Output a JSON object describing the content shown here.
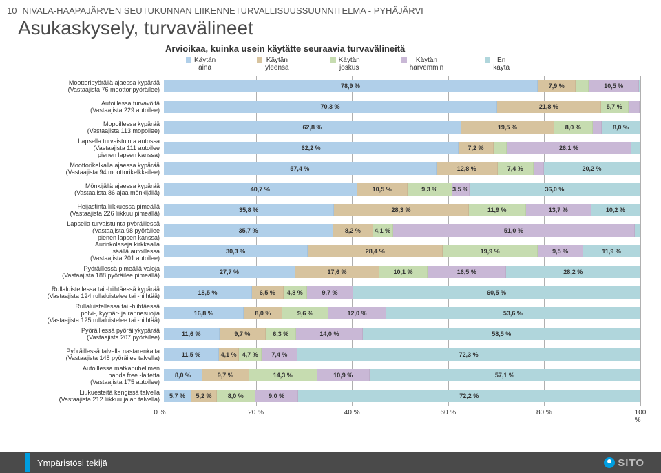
{
  "page_number": "10",
  "doc_title": "NIVALA-HAAPAJÄRVEN SEUTUKUNNAN LIIKENNETURVALLISUUSSUUNNITELMA - PYHÄJÄRVI",
  "title": "Asukaskysely, turvavälineet",
  "subtitle": "Arvioikaa, kuinka usein käytätte seuraavia turvavälineitä",
  "legend": [
    {
      "label": "Käytän\naina",
      "color": "#b0cfe9"
    },
    {
      "label": "Käytän\nyleensä",
      "color": "#d7c39e"
    },
    {
      "label": "Käytän\njoskus",
      "color": "#c6dcb0"
    },
    {
      "label": "Käytän\nharvemmin",
      "color": "#c9b8d6"
    },
    {
      "label": "En\nkäytä",
      "color": "#b0d6dc"
    }
  ],
  "colors": [
    "#b0cfe9",
    "#d7c39e",
    "#c6dcb0",
    "#c9b8d6",
    "#b0d6dc"
  ],
  "x_ticks": [
    "0 %",
    "20 %",
    "40 %",
    "60 %",
    "80 %",
    "100 %"
  ],
  "grid_color": "#b0b0b0",
  "rows": [
    {
      "label": "Moottoripyörällä ajaessa kypärää\n(Vastaajista 76 moottoripyöräilee)",
      "values": [
        78.9,
        7.9,
        2.6,
        10.5,
        0.1
      ]
    },
    {
      "label": "Autoillessa turvavöitä\n(Vastaajista 229 autoilee)",
      "values": [
        70.3,
        21.8,
        5.7,
        2.2,
        0
      ]
    },
    {
      "label": "Mopoillessa kypärää\n(Vastaajista 113 mopoilee)",
      "values": [
        62.8,
        19.5,
        8.0,
        1.8,
        8.0
      ]
    },
    {
      "label": "Lapsella turvaistuinta autossa\n(Vastaajista 111 autoilee\npienen lapsen kanssa)",
      "values": [
        62.2,
        7.2,
        2.7,
        26.1,
        1.8
      ]
    },
    {
      "label": "Moottorikelkalla ajaessa kypärää\n(Vastaajista 94 moottorikelkkailee)",
      "values": [
        57.4,
        12.8,
        7.4,
        2.1,
        20.2
      ]
    },
    {
      "label": "Mönkijällä ajaessa kypärää\n(Vastaajista 86 ajaa mönkijällä)",
      "values": [
        40.7,
        10.5,
        9.3,
        3.5,
        36.0
      ]
    },
    {
      "label": "Heijastinta liikkuessa pimeällä\n(Vastaajista 226 liikkuu pimeällä)",
      "values": [
        35.8,
        28.3,
        11.9,
        13.7,
        10.2
      ]
    },
    {
      "label": "Lapsella turvaistuinta pyöräillessä\n(Vastaajista 98 pyöräilee\npienen lapsen kanssa)",
      "values": [
        35.7,
        8.2,
        4.1,
        51.0,
        1.0
      ]
    },
    {
      "label": "Aurinkolaseja kirkkaalla\nsäällä autoillessa\n(Vastaajista 201 autoilee)",
      "values": [
        30.3,
        28.4,
        19.9,
        9.5,
        11.9
      ]
    },
    {
      "label": "Pyöräillessä pimeällä valoja\n(Vastaajista 188 pyöräilee pimeällä)",
      "values": [
        27.7,
        17.6,
        10.1,
        16.5,
        28.2
      ]
    },
    {
      "label": "Rullaluistellessa tai -hiihtäessä kypärää\n(Vastaajista 124 rullaluistelee tai -hiihtää)",
      "values": [
        18.5,
        6.5,
        4.8,
        9.7,
        60.5
      ]
    },
    {
      "label": "Rullaluistellessa tai -hiihtäessä\npolvi-, kyynär- ja rannesuojia\n(Vastaajista 125 rullaluistelee tai -hiihtää)",
      "values": [
        16.8,
        8.0,
        9.6,
        12.0,
        53.6
      ]
    },
    {
      "label": "Pyöräillessä pyöräilykypärää\n(Vastaajista 207 pyöräilee)",
      "values": [
        11.6,
        9.7,
        6.3,
        14.0,
        58.5
      ]
    },
    {
      "label": "Pyöräillessä talvella nastarenkaita\n(Vastaajista 148 pyöräilee talvella)",
      "values": [
        11.5,
        4.1,
        4.7,
        7.4,
        72.3
      ]
    },
    {
      "label": "Autoillessa matkapuhelimen\nhands free -laitetta\n(Vastaajista 175 autoilee)",
      "values": [
        8.0,
        9.7,
        14.3,
        10.9,
        57.1
      ]
    },
    {
      "label": "Liukuesteitä kengissä talvella\n(Vastaajista 212 liikkuu jalan talvella)",
      "values": [
        5.7,
        5.2,
        8.0,
        9.0,
        72.2
      ]
    }
  ],
  "footer": {
    "text": "Ympäristösi tekijä",
    "logo": "SITO",
    "bg": "#4a4a4a",
    "accent": "#009ee0"
  }
}
